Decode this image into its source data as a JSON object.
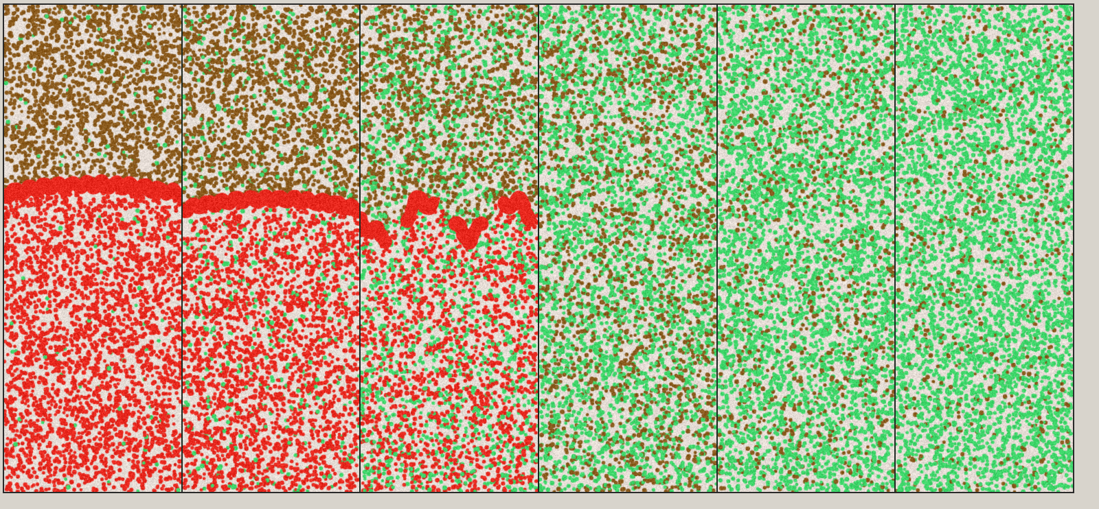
{
  "colors": {
    "background": "#e6ddd6",
    "brown_particle": "#8a5a1c",
    "red_particle": "#e8281e",
    "green_particle": "#3ed66a",
    "panel_border": "#1e2a22"
  },
  "panels": [
    {
      "front_level": 0.36,
      "front_curve": "dome",
      "top_mix": {
        "brown": 0.92,
        "green": 0.03
      },
      "bottom_mix": {
        "red": 0.97,
        "green": 0.02
      }
    },
    {
      "front_level": 0.39,
      "front_curve": "dome",
      "top_mix": {
        "brown": 0.85,
        "green": 0.12
      },
      "bottom_mix": {
        "red": 0.85,
        "green": 0.12
      }
    },
    {
      "front_level": 0.43,
      "front_curve": "broken",
      "top_mix": {
        "brown": 0.6,
        "green": 0.38
      },
      "bottom_mix": {
        "red": 0.62,
        "green": 0.36
      }
    },
    {
      "front_level": null,
      "front_curve": "none",
      "top_mix": {
        "brown": 0.35,
        "green": 0.64
      },
      "bottom_mix": {
        "brown": 0.33,
        "green": 0.64,
        "red": 0.03
      }
    },
    {
      "front_level": null,
      "front_curve": "none",
      "top_mix": {
        "brown": 0.2,
        "green": 0.8
      },
      "bottom_mix": {
        "brown": 0.2,
        "green": 0.79,
        "red": 0.01
      }
    },
    {
      "front_level": null,
      "front_curve": "none",
      "top_mix": {
        "brown": 0.12,
        "green": 0.88
      },
      "bottom_mix": {
        "brown": 0.12,
        "green": 0.88
      }
    }
  ]
}
